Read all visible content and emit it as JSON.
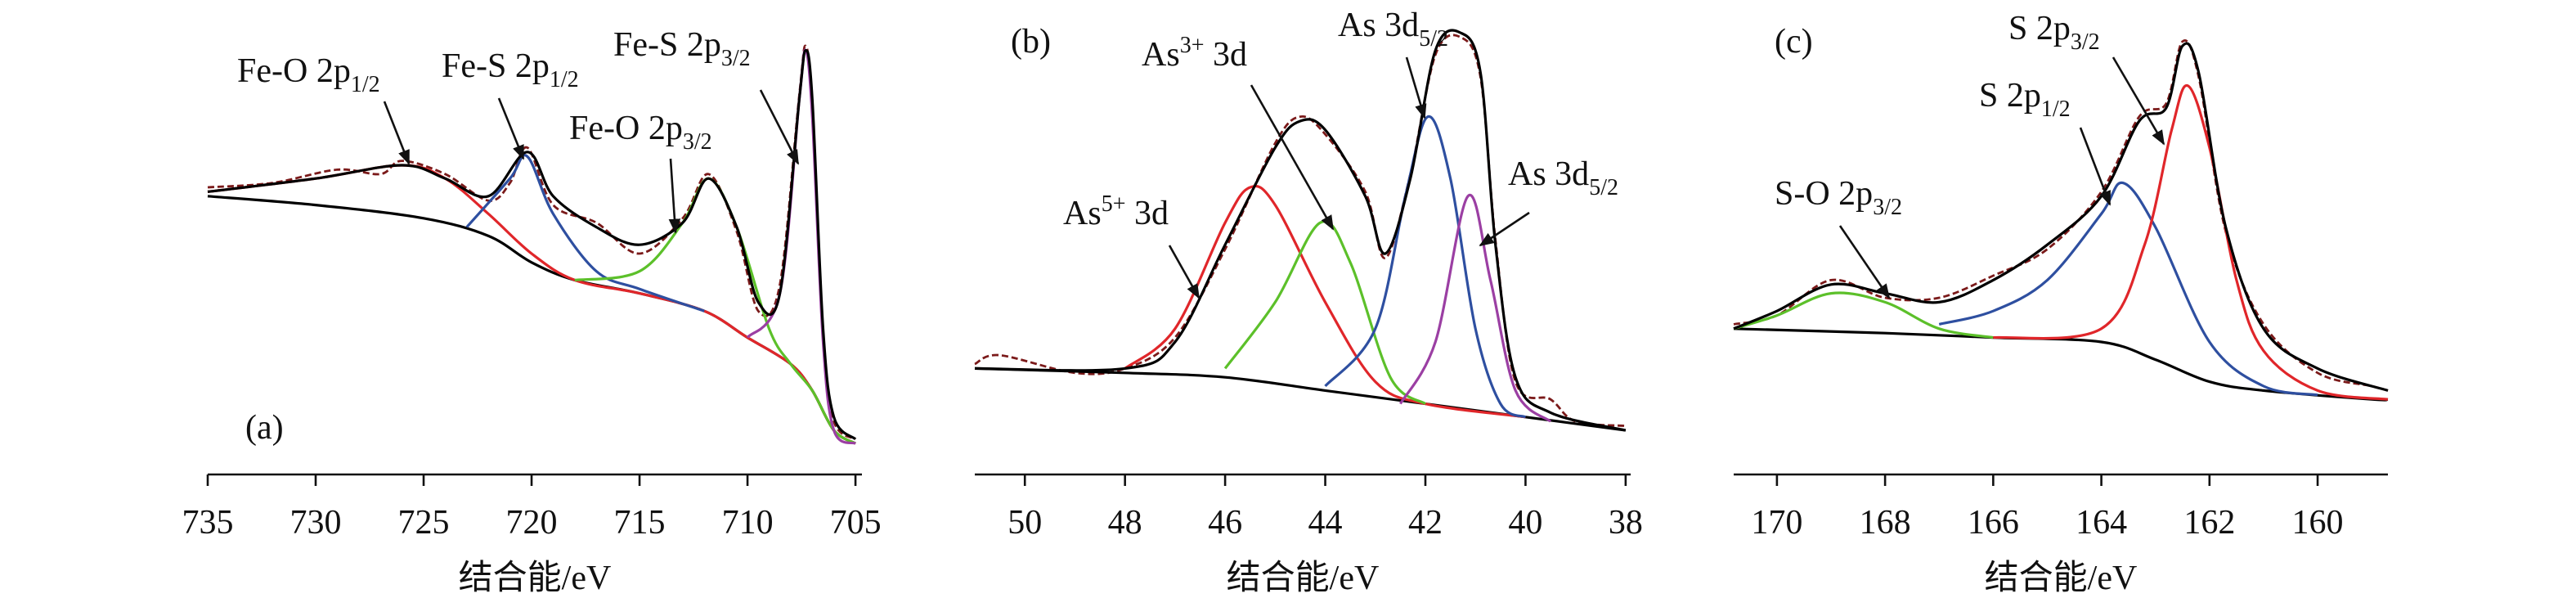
{
  "chart_data": [
    {
      "type": "line",
      "panel_label": "(a)",
      "xlabel": "结合能/eV",
      "xlim": [
        735,
        704.7
      ],
      "ylim": [
        0,
        100
      ],
      "xticks": [
        735,
        730,
        725,
        720,
        715,
        710,
        705
      ],
      "series": [
        {
          "color": "#7b1a1a",
          "line_style": "dashed",
          "x": [
            735,
            732,
            729,
            727,
            726,
            724,
            722,
            721,
            720.2,
            719,
            717,
            715,
            713,
            711.8,
            710.5,
            709.5,
            708.5,
            707.6,
            707.3,
            707,
            706.5,
            706,
            705
          ],
          "values": [
            65,
            66,
            69,
            68,
            71,
            68,
            62,
            66,
            74,
            61,
            57,
            50,
            58,
            68,
            55,
            37,
            43,
            86,
            97,
            83,
            31,
            12,
            8
          ]
        },
        {
          "color": "#000000",
          "line_style": "solid",
          "x": [
            735,
            730,
            725,
            722,
            720,
            718,
            715,
            712,
            710,
            708,
            707,
            706,
            705
          ],
          "values": [
            63,
            61,
            58,
            54,
            48,
            44,
            41,
            37,
            31,
            25,
            19,
            10,
            7
          ]
        },
        {
          "color": "#e0262a",
          "line_style": "solid",
          "x": [
            735,
            730,
            726,
            724,
            722,
            720,
            718,
            715,
            712,
            710,
            708,
            707,
            706,
            705
          ],
          "values": [
            64,
            67,
            70,
            67,
            59,
            50,
            44,
            41,
            37,
            31,
            25,
            19,
            10,
            7
          ]
        },
        {
          "color": "#2e4fa0",
          "line_style": "solid",
          "x": [
            723,
            721,
            720.2,
            719,
            717,
            715,
            712
          ],
          "values": [
            56,
            67,
            72,
            59,
            46,
            42,
            37
          ]
        },
        {
          "color": "#5cc02a",
          "line_style": "solid",
          "x": [
            718,
            715,
            713,
            711.8,
            710.5,
            709,
            708,
            707,
            706,
            705
          ],
          "values": [
            44,
            46,
            57,
            67,
            56,
            33,
            25,
            19,
            10,
            7
          ]
        },
        {
          "color": "#9b3fa3",
          "line_style": "solid",
          "x": [
            710,
            708.5,
            707.6,
            707.3,
            707,
            706.5,
            706,
            705
          ],
          "values": [
            31,
            41,
            85,
            96,
            81,
            30,
            10,
            7
          ]
        },
        {
          "color": "#000000",
          "line_style": "solid",
          "x": [
            735,
            730,
            726,
            724,
            722,
            720.2,
            719,
            717,
            715,
            713,
            711.8,
            710.5,
            709.5,
            708.5,
            707.6,
            707.3,
            707,
            706.5,
            706,
            705
          ],
          "values": [
            64,
            67,
            70,
            67,
            63,
            73,
            63,
            56,
            52,
            57,
            67,
            56,
            39,
            41,
            85,
            96,
            85,
            33,
            13,
            8
          ]
        }
      ],
      "annotations": [
        {
          "text": "Fe-O 2p",
          "sub": "1/2"
        },
        {
          "text": "Fe-S 2p",
          "sub": "1/2"
        },
        {
          "text": "Fe-S 2p",
          "sub": "3/2"
        },
        {
          "text": "Fe-O 2p",
          "sub": "3/2"
        }
      ]
    },
    {
      "type": "line",
      "panel_label": "(b)",
      "xlabel": "结合能/eV",
      "xlim": [
        51,
        37.9
      ],
      "ylim": [
        0,
        100
      ],
      "xticks": [
        50,
        48,
        46,
        44,
        42,
        40,
        38
      ],
      "series": [
        {
          "color": "#7b1a1a",
          "line_style": "dashed",
          "x": [
            51,
            50.5,
            49,
            48,
            47,
            46,
            45,
            44.5,
            44,
            43.2,
            42.8,
            42.3,
            41.8,
            41.3,
            40.9,
            40.6,
            40.2,
            39.5,
            39,
            38
          ],
          "values": [
            25,
            27,
            23,
            24,
            31,
            51,
            75,
            81,
            77,
            64,
            49,
            68,
            95,
            99,
            90,
            53,
            21,
            17,
            12,
            11
          ]
        },
        {
          "color": "#000000",
          "line_style": "solid",
          "x": [
            51,
            48,
            46,
            44,
            42,
            40,
            38
          ],
          "values": [
            24,
            23,
            22,
            19,
            16,
            13,
            10
          ]
        },
        {
          "color": "#e0262a",
          "line_style": "solid",
          "x": [
            48,
            47,
            46,
            45.5,
            45,
            44,
            43,
            42,
            40
          ],
          "values": [
            24,
            33,
            57,
            65,
            61,
            39,
            21,
            16,
            13
          ]
        },
        {
          "color": "#5cc02a",
          "line_style": "solid",
          "x": [
            46,
            45,
            44.1,
            43.5,
            42.7,
            42
          ],
          "values": [
            24,
            39,
            57,
            48,
            22,
            16
          ]
        },
        {
          "color": "#2e4fa0",
          "line_style": "solid",
          "x": [
            44,
            43,
            42.4,
            41.95,
            41.5,
            41,
            40.5,
            40
          ],
          "values": [
            20,
            33,
            63,
            81,
            67,
            33,
            16,
            13
          ]
        },
        {
          "color": "#9b3fa3",
          "line_style": "solid",
          "x": [
            42.5,
            41.8,
            41.15,
            40.7,
            40.2,
            39.5
          ],
          "values": [
            16,
            30,
            63,
            44,
            19,
            12
          ]
        },
        {
          "color": "#000000",
          "line_style": "solid",
          "x": [
            51,
            48,
            47,
            46,
            45,
            44.5,
            44,
            43.2,
            42.8,
            42.3,
            41.8,
            41.3,
            40.9,
            40.6,
            40.2,
            39.5,
            38
          ],
          "values": [
            24,
            24,
            30,
            52,
            74,
            80,
            78,
            63,
            50,
            67,
            96,
            100,
            91,
            52,
            22,
            14,
            10
          ]
        }
      ],
      "annotations": [
        {
          "text": "As",
          "sup": "5+",
          "tail": " 3d"
        },
        {
          "text": "As",
          "sup": "3+",
          "tail": " 3d"
        },
        {
          "text": "As 3d",
          "sub": "5/2"
        },
        {
          "text": "As 3d",
          "sub": "5/2"
        }
      ]
    },
    {
      "type": "line",
      "panel_label": "(c)",
      "xlabel": "结合能/eV",
      "xlim": [
        170.8,
        158.7
      ],
      "ylim": [
        0,
        100
      ],
      "xticks": [
        170,
        168,
        166,
        164,
        162,
        160
      ],
      "series": [
        {
          "color": "#7b1a1a",
          "line_style": "dashed",
          "x": [
            170.8,
            170,
            169,
            168,
            167,
            166,
            165,
            164,
            163.3,
            162.8,
            162.5,
            162.2,
            161.7,
            161,
            160,
            159,
            158.7
          ],
          "values": [
            34,
            36,
            44,
            40,
            40,
            45,
            51,
            64,
            81,
            84,
            98,
            90,
            55,
            34,
            23,
            20,
            19
          ]
        },
        {
          "color": "#000000",
          "line_style": "solid",
          "x": [
            170.8,
            168,
            166,
            164,
            163,
            162,
            161,
            159,
            158.7
          ],
          "values": [
            33,
            32,
            31,
            30,
            26,
            21,
            19,
            17,
            17
          ]
        },
        {
          "color": "#5cc02a",
          "line_style": "solid",
          "x": [
            170.8,
            170,
            169,
            168,
            167,
            166
          ],
          "values": [
            33,
            36,
            41,
            39,
            33,
            31
          ]
        },
        {
          "color": "#2e4fa0",
          "line_style": "solid",
          "x": [
            167,
            166,
            165,
            164,
            163.6,
            163,
            162,
            161,
            160
          ],
          "values": [
            34,
            37,
            44,
            59,
            66,
            56,
            30,
            20,
            18
          ]
        },
        {
          "color": "#e0262a",
          "line_style": "solid",
          "x": [
            166,
            164,
            163.2,
            162.7,
            162.4,
            162,
            161.5,
            161,
            160,
            158.7
          ],
          "values": [
            31,
            33,
            52,
            78,
            88,
            74,
            44,
            28,
            19,
            17
          ]
        },
        {
          "color": "#000000",
          "line_style": "solid",
          "x": [
            170.8,
            170,
            169,
            168,
            167,
            166,
            165,
            164,
            163.3,
            162.8,
            162.5,
            162.2,
            161.7,
            161,
            160,
            158.7
          ],
          "values": [
            33,
            37,
            43,
            41,
            39,
            44,
            52,
            63,
            80,
            83,
            97,
            91,
            56,
            33,
            24,
            19
          ]
        }
      ],
      "annotations": [
        {
          "text": "S-O 2p",
          "sub": "3/2"
        },
        {
          "text": "S 2p",
          "sub": "1/2"
        },
        {
          "text": "S 2p",
          "sub": "3/2"
        }
      ]
    }
  ]
}
